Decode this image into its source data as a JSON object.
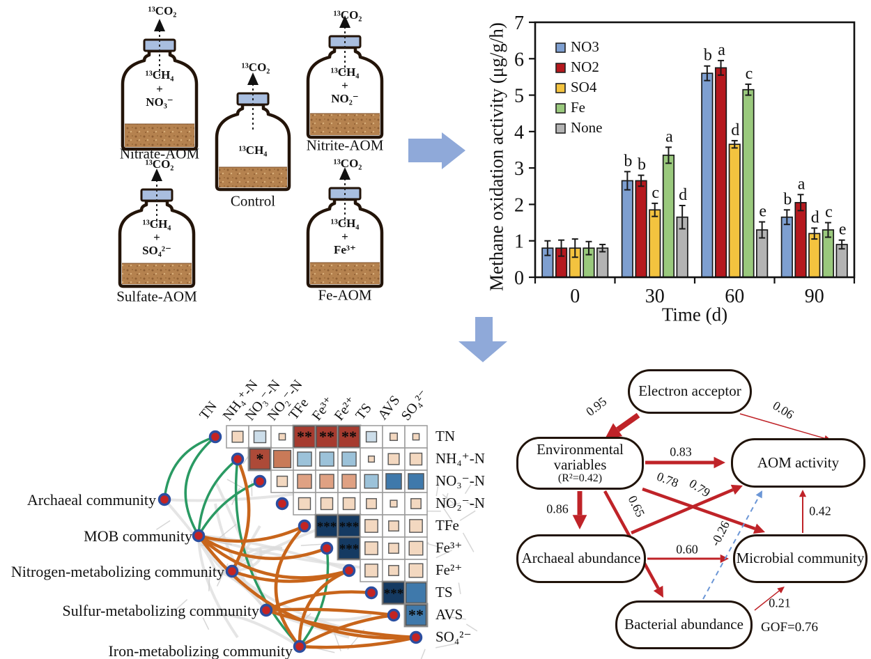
{
  "colors": {
    "flow_arrow": "#8fa9d9",
    "bottle_cap": "#a9bedf",
    "bottle_outline": "#231409",
    "sediment": "#b5824f",
    "sem_red": "#bf2328",
    "sem_blue": "#6b96d6",
    "edge_green": "#2a9a63",
    "edge_orange": "#c8651b",
    "node_fill": "#c42423",
    "node_ring": "#2b4ea0"
  },
  "bottles": {
    "items": [
      {
        "name": "Nitrate-AOM",
        "gas": "¹³CO₂",
        "contents": [
          "¹³CH₄",
          "+",
          "NO₃⁻"
        ]
      },
      {
        "name": "Control",
        "gas": "¹³CO₂",
        "contents": [
          "¹³CH₄"
        ]
      },
      {
        "name": "Nitrite-AOM",
        "gas": "¹³CO₂",
        "contents": [
          "¹³CH₄",
          "+",
          "NO₂⁻"
        ]
      },
      {
        "name": "Sulfate-AOM",
        "gas": "¹³CO₂",
        "contents": [
          "¹³CH₄",
          "+",
          "SO₄²⁻"
        ]
      },
      {
        "name": "Fe-AOM",
        "gas": "¹³CO₂",
        "contents": [
          "¹³CH₄",
          "+",
          "Fe³⁺"
        ]
      }
    ]
  },
  "chart_data": {
    "type": "bar",
    "title": "",
    "xlabel": "Time (d)",
    "ylabel": "Methane oxidation activity (μg/g/h)",
    "ylim": [
      0,
      7
    ],
    "yticks": [
      0,
      1,
      2,
      3,
      4,
      5,
      6,
      7
    ],
    "categories": [
      "0",
      "30",
      "60",
      "90"
    ],
    "grid": false,
    "legend_position": "upper-left-inside",
    "series": [
      {
        "name": "NO3",
        "color": "#7e9fd0",
        "values": [
          0.8,
          2.65,
          5.6,
          1.65
        ],
        "errors": [
          0.2,
          0.25,
          0.2,
          0.2
        ],
        "letters": [
          "",
          "b",
          "b",
          "b"
        ]
      },
      {
        "name": "NO2",
        "color": "#b5191e",
        "values": [
          0.8,
          2.65,
          5.75,
          2.05
        ],
        "errors": [
          0.22,
          0.15,
          0.2,
          0.22
        ],
        "letters": [
          "",
          "b",
          "a",
          "a"
        ]
      },
      {
        "name": "SO4",
        "color": "#f3c33f",
        "values": [
          0.8,
          1.85,
          3.65,
          1.2
        ],
        "errors": [
          0.25,
          0.18,
          0.1,
          0.15
        ],
        "letters": [
          "",
          "c",
          "d",
          "d"
        ]
      },
      {
        "name": "Fe",
        "color": "#9ac97d",
        "values": [
          0.8,
          3.35,
          5.15,
          1.3
        ],
        "errors": [
          0.18,
          0.22,
          0.15,
          0.2
        ],
        "letters": [
          "",
          "a",
          "c",
          "c"
        ]
      },
      {
        "name": "None",
        "color": "#b3b3b3",
        "values": [
          0.8,
          1.65,
          1.3,
          0.9
        ],
        "errors": [
          0.1,
          0.32,
          0.22,
          0.12
        ],
        "letters": [
          "",
          "d",
          "e",
          "e"
        ]
      }
    ]
  },
  "correlation_matrix": {
    "variables": [
      "TN",
      "NH₄⁺-N",
      "NO₃⁻-N",
      "NO₂⁻-N",
      "TFe",
      "Fe³⁺",
      "Fe²⁺",
      "TS",
      "AVS",
      "SO₄²⁻"
    ],
    "palette": {
      "dr": "#a63b2f",
      "bk": "#ad4a38",
      "sa": "#c97a58",
      "ls": "#dfa183",
      "pe": "#f3d8c0",
      "lb": "#ccdde9",
      "mb": "#9cc2d9",
      "db": "#3f79ab",
      "nv": "#153a62"
    },
    "cells": [
      {
        "row": 0,
        "items": [
          [
            1,
            0.45,
            "pe",
            ""
          ],
          [
            2,
            0.5,
            "lb",
            ""
          ],
          [
            3,
            0.2,
            "pe",
            ""
          ],
          [
            4,
            1,
            "dr",
            "**"
          ],
          [
            5,
            1,
            "dr",
            "**"
          ],
          [
            6,
            1,
            "dr",
            "**"
          ],
          [
            7,
            0.42,
            "lb",
            ""
          ],
          [
            8,
            0.25,
            "pe",
            ""
          ],
          [
            9,
            0.2,
            "pe",
            ""
          ]
        ]
      },
      {
        "row": 1,
        "items": [
          [
            2,
            0.95,
            "bk",
            "*"
          ],
          [
            3,
            0.8,
            "sa",
            ""
          ],
          [
            4,
            0.62,
            "mb",
            ""
          ],
          [
            5,
            0.62,
            "mb",
            ""
          ],
          [
            6,
            0.62,
            "mb",
            ""
          ],
          [
            7,
            0.18,
            "pe",
            ""
          ],
          [
            8,
            0.45,
            "pe",
            ""
          ],
          [
            9,
            0.5,
            "pe",
            ""
          ]
        ]
      },
      {
        "row": 2,
        "items": [
          [
            3,
            0.42,
            "pe",
            ""
          ],
          [
            4,
            0.62,
            "ls",
            ""
          ],
          [
            5,
            0.62,
            "ls",
            ""
          ],
          [
            6,
            0.62,
            "ls",
            ""
          ],
          [
            7,
            0.6,
            "mb",
            ""
          ],
          [
            8,
            0.7,
            "db",
            ""
          ],
          [
            9,
            0.7,
            "db",
            ""
          ]
        ]
      },
      {
        "row": 3,
        "items": [
          [
            4,
            0.5,
            "pe",
            ""
          ],
          [
            5,
            0.5,
            "pe",
            ""
          ],
          [
            6,
            0.5,
            "pe",
            ""
          ],
          [
            7,
            0.4,
            "pe",
            ""
          ],
          [
            8,
            0.22,
            "pe",
            ""
          ],
          [
            9,
            0.4,
            "pe",
            ""
          ]
        ]
      },
      {
        "row": 4,
        "items": [
          [
            5,
            1,
            "nv",
            "***"
          ],
          [
            6,
            1,
            "nv",
            "***"
          ],
          [
            7,
            0.55,
            "pe",
            ""
          ],
          [
            8,
            0.4,
            "pe",
            ""
          ],
          [
            9,
            0.55,
            "pe",
            ""
          ]
        ]
      },
      {
        "row": 5,
        "items": [
          [
            6,
            1,
            "nv",
            "***"
          ],
          [
            7,
            0.55,
            "pe",
            ""
          ],
          [
            8,
            0.4,
            "pe",
            ""
          ],
          [
            9,
            0.6,
            "pe",
            ""
          ]
        ]
      },
      {
        "row": 6,
        "items": [
          [
            7,
            0.55,
            "pe",
            ""
          ],
          [
            8,
            0.4,
            "pe",
            ""
          ],
          [
            9,
            0.6,
            "pe",
            ""
          ]
        ]
      },
      {
        "row": 7,
        "items": [
          [
            8,
            1,
            "nv",
            "***"
          ],
          [
            9,
            0.95,
            "db",
            ""
          ]
        ]
      },
      {
        "row": 8,
        "items": [
          [
            9,
            0.95,
            "db",
            "**"
          ]
        ]
      }
    ]
  },
  "network": {
    "communities": [
      "Archaeal community",
      "MOB community",
      "Nitrogen-metabolizing community",
      "Sulfur-metabolizing community",
      "Iron-metabolizing community"
    ],
    "edges": [
      {
        "community": 0,
        "variable": 0,
        "color": "green",
        "curve": -38
      },
      {
        "community": 1,
        "variable": 0,
        "color": "green",
        "curve": -60
      },
      {
        "community": 1,
        "variable": 1,
        "color": "green",
        "curve": -28
      },
      {
        "community": 1,
        "variable": 2,
        "color": "green",
        "curve": -20
      },
      {
        "community": 4,
        "variable": 1,
        "color": "green",
        "curve": -65
      },
      {
        "community": 4,
        "variable": 5,
        "color": "green",
        "curve": 30
      },
      {
        "community": 2,
        "variable": 1,
        "color": "orange",
        "curve": 40
      },
      {
        "community": 1,
        "variable": 4,
        "color": "orange",
        "curve": 28
      },
      {
        "community": 1,
        "variable": 5,
        "color": "orange",
        "curve": 46
      },
      {
        "community": 1,
        "variable": 6,
        "color": "orange",
        "curve": 62
      },
      {
        "community": 1,
        "variable": 9,
        "color": "orange",
        "curve": 95
      },
      {
        "community": 2,
        "variable": 6,
        "color": "orange",
        "curve": 30
      },
      {
        "community": 3,
        "variable": 7,
        "color": "orange",
        "curve": -20
      },
      {
        "community": 3,
        "variable": 8,
        "color": "orange",
        "curve": -8
      },
      {
        "community": 3,
        "variable": 9,
        "color": "orange",
        "curve": 14
      },
      {
        "community": 4,
        "variable": 4,
        "color": "orange",
        "curve": -75
      },
      {
        "community": 4,
        "variable": 6,
        "color": "orange",
        "curve": -45
      },
      {
        "community": 4,
        "variable": 8,
        "color": "orange",
        "curve": -14
      },
      {
        "community": 4,
        "variable": 9,
        "color": "orange",
        "curve": 12
      }
    ]
  },
  "sem": {
    "nodes": [
      {
        "id": "electron",
        "lines": [
          "Electron acceptor"
        ]
      },
      {
        "id": "env",
        "lines": [
          "Environmental",
          "variables",
          "(R²=0.42)"
        ]
      },
      {
        "id": "aom",
        "lines": [
          "AOM activity"
        ]
      },
      {
        "id": "arch",
        "lines": [
          "Archaeal abundance"
        ]
      },
      {
        "id": "micro",
        "lines": [
          "Microbial community"
        ]
      },
      {
        "id": "bact",
        "lines": [
          "Bacterial abundance"
        ]
      }
    ],
    "paths": [
      {
        "from": "electron",
        "to": "env",
        "label": "0.95",
        "weight": 8,
        "style": "solid",
        "color": "red"
      },
      {
        "from": "electron",
        "to": "aom",
        "label": "0.06",
        "weight": 1.5,
        "style": "solid",
        "color": "red"
      },
      {
        "from": "env",
        "to": "aom",
        "label": "0.83",
        "weight": 5,
        "style": "solid",
        "color": "red"
      },
      {
        "from": "env",
        "to": "arch",
        "label": "0.86",
        "weight": 7,
        "style": "solid",
        "color": "red"
      },
      {
        "from": "env",
        "to": "bact",
        "label": "0.65",
        "weight": 4.5,
        "style": "solid",
        "color": "red"
      },
      {
        "from": "env",
        "to": "micro",
        "label": "0.78",
        "weight": 4.5,
        "style": "solid",
        "color": "red"
      },
      {
        "from": "arch",
        "to": "aom",
        "label": "0.79",
        "weight": 4.5,
        "style": "solid",
        "color": "red"
      },
      {
        "from": "arch",
        "to": "micro",
        "label": "0.60",
        "weight": 3,
        "style": "solid",
        "color": "red"
      },
      {
        "from": "bact",
        "to": "aom",
        "label": "-0.26",
        "weight": 2,
        "style": "dashed",
        "color": "blue"
      },
      {
        "from": "bact",
        "to": "micro",
        "label": "0.21",
        "weight": 1.5,
        "style": "solid",
        "color": "red"
      },
      {
        "from": "micro",
        "to": "aom",
        "label": "0.42",
        "weight": 2,
        "style": "solid",
        "color": "red"
      }
    ],
    "gof": "GOF=0.76"
  }
}
